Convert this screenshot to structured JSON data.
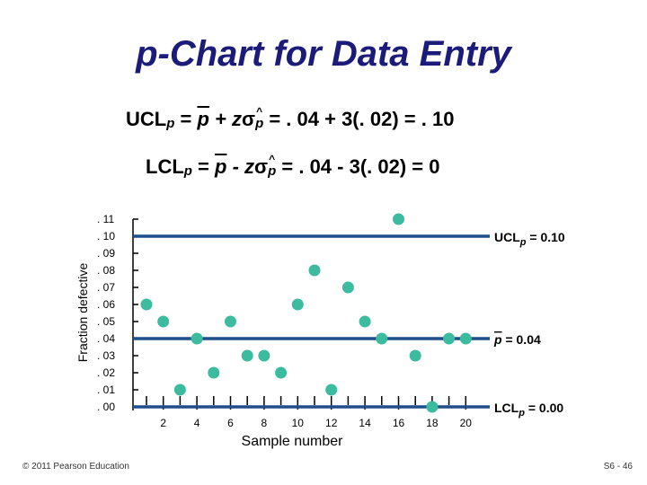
{
  "title": "p-Chart for Data Entry",
  "formulas": {
    "ucl": {
      "lhs": "UCL",
      "sub": "p",
      "eq": " = ",
      "pbar": "p",
      "plus": " + z",
      "sigma": "σ",
      "sigma_sub": "p",
      "rhs": " = . 04 + 3(. 02) = . 10"
    },
    "lcl": {
      "lhs": "LCL",
      "sub": "p",
      "eq": " = ",
      "pbar": "p",
      "minus": " - z",
      "sigma": "σ",
      "sigma_sub": "p",
      "rhs": " = . 04 - 3(. 02) = 0"
    }
  },
  "footer": {
    "copyright": "© 2011 Pearson Education",
    "page": "S6 - 46"
  },
  "colors": {
    "title": "#1b1b7a",
    "line": "#1f4e8c",
    "point": "#3dbb9e"
  },
  "chart_data": {
    "type": "scatter",
    "xlabel": "Sample number",
    "ylabel": "Fraction defective",
    "ylim": [
      0,
      0.11
    ],
    "xlim": [
      0,
      20
    ],
    "y_ticks": [
      {
        "v": 0.11,
        "label": ". 11"
      },
      {
        "v": 0.1,
        "label": ". 10"
      },
      {
        "v": 0.09,
        "label": ". 09"
      },
      {
        "v": 0.08,
        "label": ". 08"
      },
      {
        "v": 0.07,
        "label": ". 07"
      },
      {
        "v": 0.06,
        "label": ". 06"
      },
      {
        "v": 0.05,
        "label": ". 05"
      },
      {
        "v": 0.04,
        "label": ". 04"
      },
      {
        "v": 0.03,
        "label": ". 03"
      },
      {
        "v": 0.02,
        "label": ". 02"
      },
      {
        "v": 0.01,
        "label": ". 01"
      },
      {
        "v": 0.0,
        "label": ". 00"
      }
    ],
    "x_ticks": [
      2,
      4,
      6,
      8,
      10,
      12,
      14,
      16,
      18,
      20
    ],
    "x_minor_ticks": [
      1,
      3,
      5,
      7,
      9,
      11,
      13,
      15,
      17,
      19
    ],
    "x": [
      1,
      2,
      3,
      4,
      5,
      6,
      7,
      8,
      9,
      10,
      11,
      12,
      13,
      14,
      15,
      16,
      17,
      18,
      19,
      20
    ],
    "values": [
      0.06,
      0.05,
      0.01,
      0.04,
      0.02,
      0.05,
      0.03,
      0.03,
      0.02,
      0.06,
      0.08,
      0.01,
      0.07,
      0.05,
      0.04,
      0.11,
      0.03,
      0.0,
      0.04,
      0.04
    ],
    "lines": [
      {
        "value": 0.1,
        "label_main": "UCL",
        "label_sub": "p",
        "label_rest": " = 0.10"
      },
      {
        "value": 0.04,
        "label_main": "p",
        "label_sub": "",
        "label_rest": " = 0.04",
        "overline": true
      },
      {
        "value": 0.0,
        "label_main": "LCL",
        "label_sub": "p",
        "label_rest": " = 0.00"
      }
    ]
  }
}
